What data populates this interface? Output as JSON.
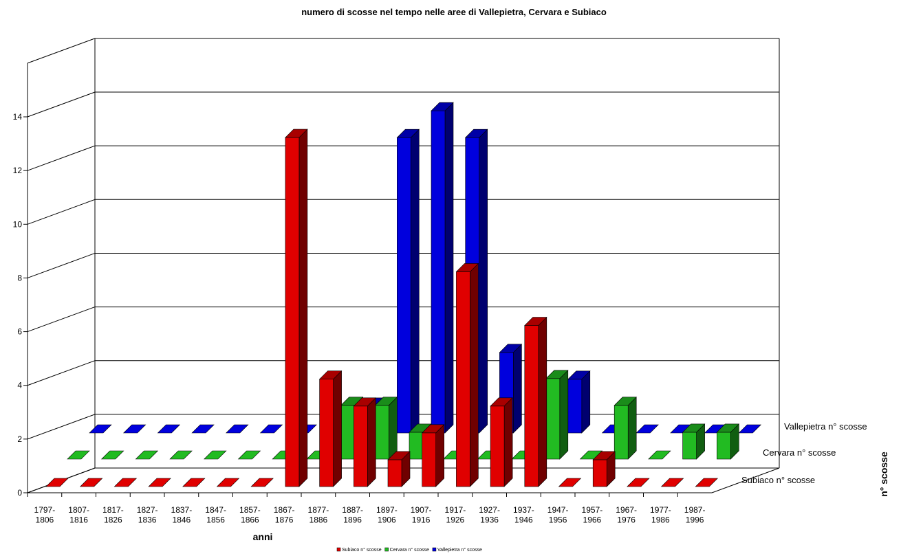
{
  "chart_data": {
    "type": "bar3d",
    "title": "numero di scosse nel tempo nelle aree di Vallepietra, Cervara e Subiaco",
    "x_label": "anni",
    "y_label": "n° scosse",
    "categories": [
      "1797-\n1806",
      "1807-\n1816",
      "1817-\n1826",
      "1827-\n1836",
      "1837-\n1846",
      "1847-\n1856",
      "1857-\n1866",
      "1867-\n1876",
      "1877-\n1886",
      "1887-\n1896",
      "1897-\n1906",
      "1907-\n1916",
      "1917-\n1926",
      "1927-\n1936",
      "1937-\n1946",
      "1947-\n1956",
      "1957-\n1966",
      "1967-\n1976",
      "1977-\n1986",
      "1987-\n1996"
    ],
    "series": [
      {
        "name": "Subiaco n° scosse",
        "color": "#e00000",
        "values": [
          0,
          0,
          0,
          0,
          0,
          0,
          0,
          13,
          4,
          3,
          1,
          2,
          8,
          3,
          6,
          0,
          1,
          0,
          0,
          0
        ]
      },
      {
        "name": "Cervara n° scosse",
        "color": "#22bb22",
        "values": [
          0,
          0,
          0,
          0,
          0,
          0,
          0,
          0,
          2,
          2,
          1,
          0,
          0,
          0,
          3,
          0,
          2,
          0,
          1,
          1
        ]
      },
      {
        "name": "Vallepietra n° scosse",
        "color": "#0000dd",
        "values": [
          0,
          0,
          0,
          0,
          0,
          0,
          0,
          0,
          1,
          11,
          12,
          11,
          3,
          0,
          2,
          0,
          0,
          0,
          0,
          0
        ]
      }
    ],
    "ylim": [
      0,
      16
    ],
    "yticks": [
      0,
      2,
      4,
      6,
      8,
      10,
      12,
      14
    ],
    "grid": true
  }
}
